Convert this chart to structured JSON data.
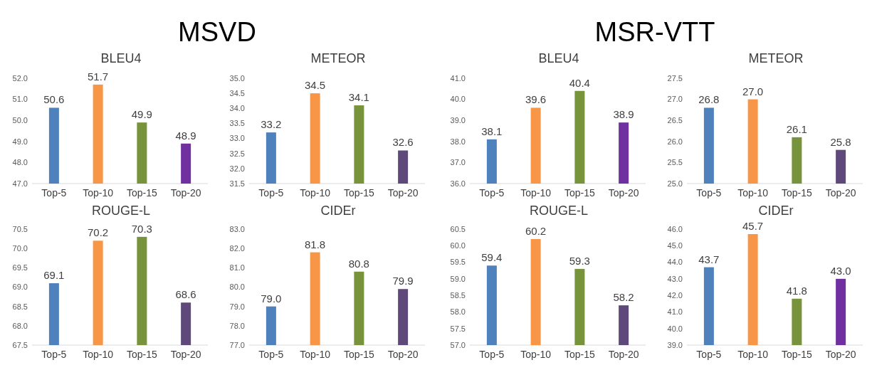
{
  "chart_data": [
    {
      "type": "bar",
      "title": "BLEU4",
      "annotations": [
        "MSVD"
      ],
      "categories": [
        "Top-5",
        "Top-10",
        "Top-15",
        "Top-20"
      ],
      "values": [
        50.6,
        51.7,
        49.9,
        48.9
      ],
      "value_labels": [
        "50.6",
        "51.7",
        "49.9",
        "48.9"
      ],
      "colors": [
        "#4f81bd",
        "#f79646",
        "#77933c",
        "#7030a0"
      ],
      "ylim": [
        47,
        52
      ],
      "yticks": [
        {
          "value": 47,
          "label": "47.0"
        },
        {
          "value": 48,
          "label": "48.0"
        },
        {
          "value": 49,
          "label": "49.0"
        },
        {
          "value": 50,
          "label": "50.0"
        },
        {
          "value": 51,
          "label": "51.0"
        },
        {
          "value": 52,
          "label": "52.0"
        }
      ]
    },
    {
      "type": "bar",
      "title": "METEOR",
      "categories": [
        "Top-5",
        "Top-10",
        "Top-15",
        "Top-20"
      ],
      "values": [
        33.2,
        34.5,
        34.1,
        32.6
      ],
      "value_labels": [
        "33.2",
        "34.5",
        "34.1",
        "32.6"
      ],
      "colors": [
        "#4f81bd",
        "#f79646",
        "#77933c",
        "#5f497a"
      ],
      "ylim": [
        31.5,
        35
      ],
      "yticks": [
        {
          "value": 31.5,
          "label": "31.5"
        },
        {
          "value": 32,
          "label": "32.0"
        },
        {
          "value": 32.5,
          "label": "32.5"
        },
        {
          "value": 33,
          "label": "33.0"
        },
        {
          "value": 33.5,
          "label": "33.5"
        },
        {
          "value": 34,
          "label": "34.0"
        },
        {
          "value": 34.5,
          "label": "34.5"
        },
        {
          "value": 35,
          "label": "35.0"
        }
      ]
    },
    {
      "type": "bar",
      "title": "BLEU4",
      "annotations": [
        "MSR-VTT"
      ],
      "categories": [
        "Top-5",
        "Top-10",
        "Top-15",
        "Top-20"
      ],
      "values": [
        38.1,
        39.6,
        40.4,
        38.9
      ],
      "value_labels": [
        "38.1",
        "39.6",
        "40.4",
        "38.9"
      ],
      "colors": [
        "#4f81bd",
        "#f79646",
        "#77933c",
        "#7030a0"
      ],
      "ylim": [
        36,
        41
      ],
      "yticks": [
        {
          "value": 36,
          "label": "36.0"
        },
        {
          "value": 37,
          "label": "37.0"
        },
        {
          "value": 38,
          "label": "38.0"
        },
        {
          "value": 39,
          "label": "39.0"
        },
        {
          "value": 40,
          "label": "40.0"
        },
        {
          "value": 41,
          "label": "41.0"
        }
      ]
    },
    {
      "type": "bar",
      "title": "METEOR",
      "categories": [
        "Top-5",
        "Top-10",
        "Top-15",
        "Top-20"
      ],
      "values": [
        26.8,
        27,
        26.1,
        25.8
      ],
      "value_labels": [
        "26.8",
        "27.0",
        "26.1",
        "25.8"
      ],
      "colors": [
        "#4f81bd",
        "#f79646",
        "#77933c",
        "#5f497a"
      ],
      "ylim": [
        25,
        27.5
      ],
      "yticks": [
        {
          "value": 25,
          "label": "25.0"
        },
        {
          "value": 25.5,
          "label": "25.5"
        },
        {
          "value": 26,
          "label": "26.0"
        },
        {
          "value": 26.5,
          "label": "26.5"
        },
        {
          "value": 27,
          "label": "27.0"
        },
        {
          "value": 27.5,
          "label": "27.5"
        }
      ]
    },
    {
      "type": "bar",
      "title": "ROUGE-L",
      "categories": [
        "Top-5",
        "Top-10",
        "Top-15",
        "Top-20"
      ],
      "values": [
        69.1,
        70.2,
        70.3,
        68.6
      ],
      "value_labels": [
        "69.1",
        "70.2",
        "70.3",
        "68.6"
      ],
      "colors": [
        "#4f81bd",
        "#f79646",
        "#77933c",
        "#5f497a"
      ],
      "ylim": [
        67.5,
        70.5
      ],
      "yticks": [
        {
          "value": 67.5,
          "label": "67.5"
        },
        {
          "value": 68,
          "label": "68.0"
        },
        {
          "value": 68.5,
          "label": "68.5"
        },
        {
          "value": 69,
          "label": "69.0"
        },
        {
          "value": 69.5,
          "label": "69.5"
        },
        {
          "value": 70,
          "label": "70.0"
        },
        {
          "value": 70.5,
          "label": "70.5"
        }
      ]
    },
    {
      "type": "bar",
      "title": "CIDEr",
      "categories": [
        "Top-5",
        "Top-10",
        "Top-15",
        "Top-20"
      ],
      "values": [
        79,
        81.8,
        80.8,
        79.9
      ],
      "value_labels": [
        "79.0",
        "81.8",
        "80.8",
        "79.9"
      ],
      "colors": [
        "#4f81bd",
        "#f79646",
        "#77933c",
        "#5f497a"
      ],
      "ylim": [
        77,
        83
      ],
      "yticks": [
        {
          "value": 77,
          "label": "77.0"
        },
        {
          "value": 78,
          "label": "78.0"
        },
        {
          "value": 79,
          "label": "79.0"
        },
        {
          "value": 80,
          "label": "80.0"
        },
        {
          "value": 81,
          "label": "81.0"
        },
        {
          "value": 82,
          "label": "82.0"
        },
        {
          "value": 83,
          "label": "83.0"
        }
      ]
    },
    {
      "type": "bar",
      "title": "ROUGE-L",
      "categories": [
        "Top-5",
        "Top-10",
        "Top-15",
        "Top-20"
      ],
      "values": [
        59.4,
        60.2,
        59.3,
        58.2
      ],
      "value_labels": [
        "59.4",
        "60.2",
        "59.3",
        "58.2"
      ],
      "colors": [
        "#4f81bd",
        "#f79646",
        "#77933c",
        "#5f497a"
      ],
      "ylim": [
        57,
        60.5
      ],
      "yticks": [
        {
          "value": 57,
          "label": "57.0"
        },
        {
          "value": 57.5,
          "label": "57.5"
        },
        {
          "value": 58,
          "label": "58.0"
        },
        {
          "value": 58.5,
          "label": "58.5"
        },
        {
          "value": 59,
          "label": "59.0"
        },
        {
          "value": 59.5,
          "label": "59.5"
        },
        {
          "value": 60,
          "label": "60.0"
        },
        {
          "value": 60.5,
          "label": "60.5"
        }
      ]
    },
    {
      "type": "bar",
      "title": "CIDEr",
      "categories": [
        "Top-5",
        "Top-10",
        "Top-15",
        "Top-20"
      ],
      "values": [
        43.7,
        45.7,
        41.8,
        43
      ],
      "value_labels": [
        "43.7",
        "45.7",
        "41.8",
        "43.0"
      ],
      "colors": [
        "#4f81bd",
        "#f79646",
        "#77933c",
        "#7030a0"
      ],
      "ylim": [
        39,
        46
      ],
      "yticks": [
        {
          "value": 39,
          "label": "39.0"
        },
        {
          "value": 40,
          "label": "40.0"
        },
        {
          "value": 41,
          "label": "41.0"
        },
        {
          "value": 42,
          "label": "42.0"
        },
        {
          "value": 43,
          "label": "43.0"
        },
        {
          "value": 44,
          "label": "44.0"
        },
        {
          "value": 45,
          "label": "45.0"
        },
        {
          "value": 46,
          "label": "46.0"
        }
      ]
    }
  ]
}
